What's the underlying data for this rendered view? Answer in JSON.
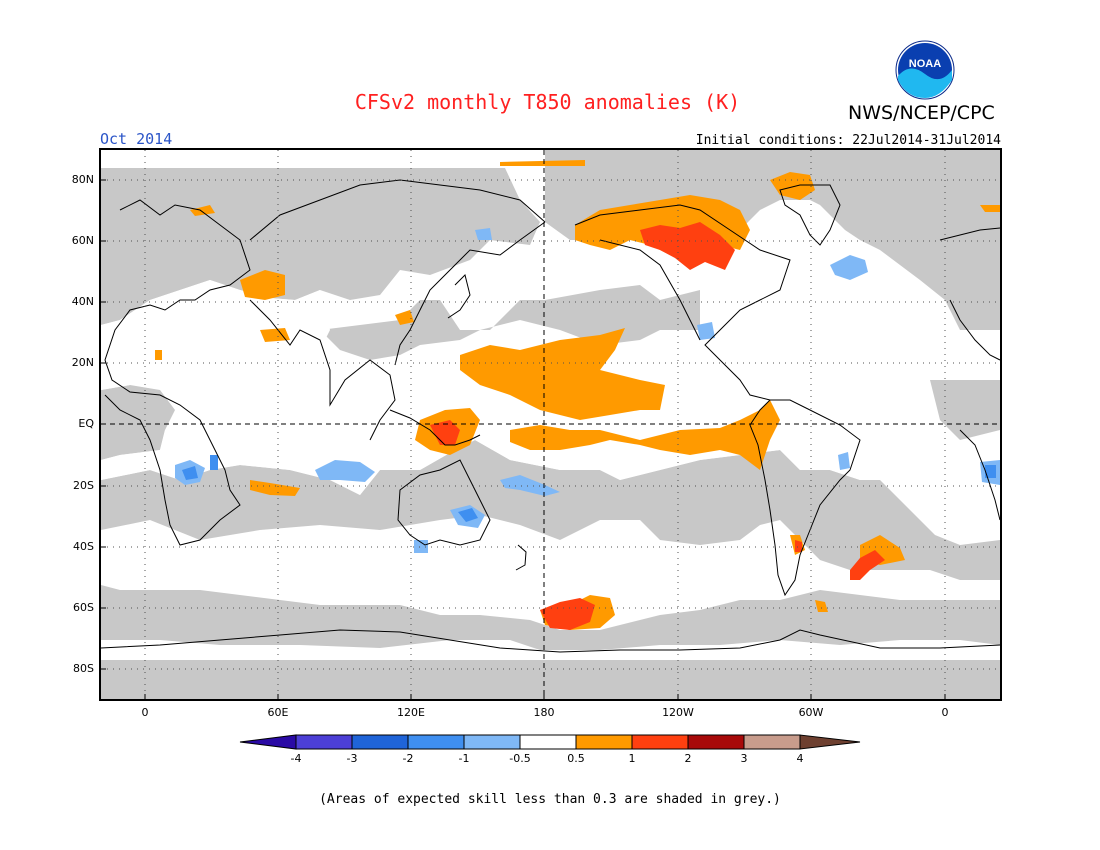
{
  "header": {
    "title": "CFSv2 monthly T850 anomalies (K)",
    "title_color": "#ff2020",
    "agency": "NWS/NCEP/CPC",
    "period": "Oct 2014",
    "period_color": "#2b55c8",
    "initial_conditions": "Initial conditions: 22Jul2014-31Jul2014",
    "logo_text": "NOAA",
    "logo_icon": "noaa-logo-icon"
  },
  "axes": {
    "y_ticks": [
      "80N",
      "60N",
      "40N",
      "20N",
      "EQ",
      "20S",
      "40S",
      "60S",
      "80S"
    ],
    "x_ticks": [
      "0",
      "60E",
      "120E",
      "180",
      "120W",
      "60W",
      "0"
    ]
  },
  "colorbar": {
    "labels": [
      "-4",
      "-3",
      "-2",
      "-1",
      "-0.5",
      "0.5",
      "1",
      "2",
      "3",
      "4"
    ],
    "colors": [
      "#2a0aa5",
      "#4c3fd6",
      "#1f64d8",
      "#3f8ff0",
      "#7fb8f6",
      "#ffffff",
      "#ff9a00",
      "#ff4010",
      "#a80a0a",
      "#c89c8c",
      "#6e4030"
    ]
  },
  "legend_colors": {
    "grey_low_skill": "#c8c8c8",
    "coastline": "#000000"
  },
  "footnote": "(Areas of expected skill less than 0.3 are shaded in grey.)"
}
